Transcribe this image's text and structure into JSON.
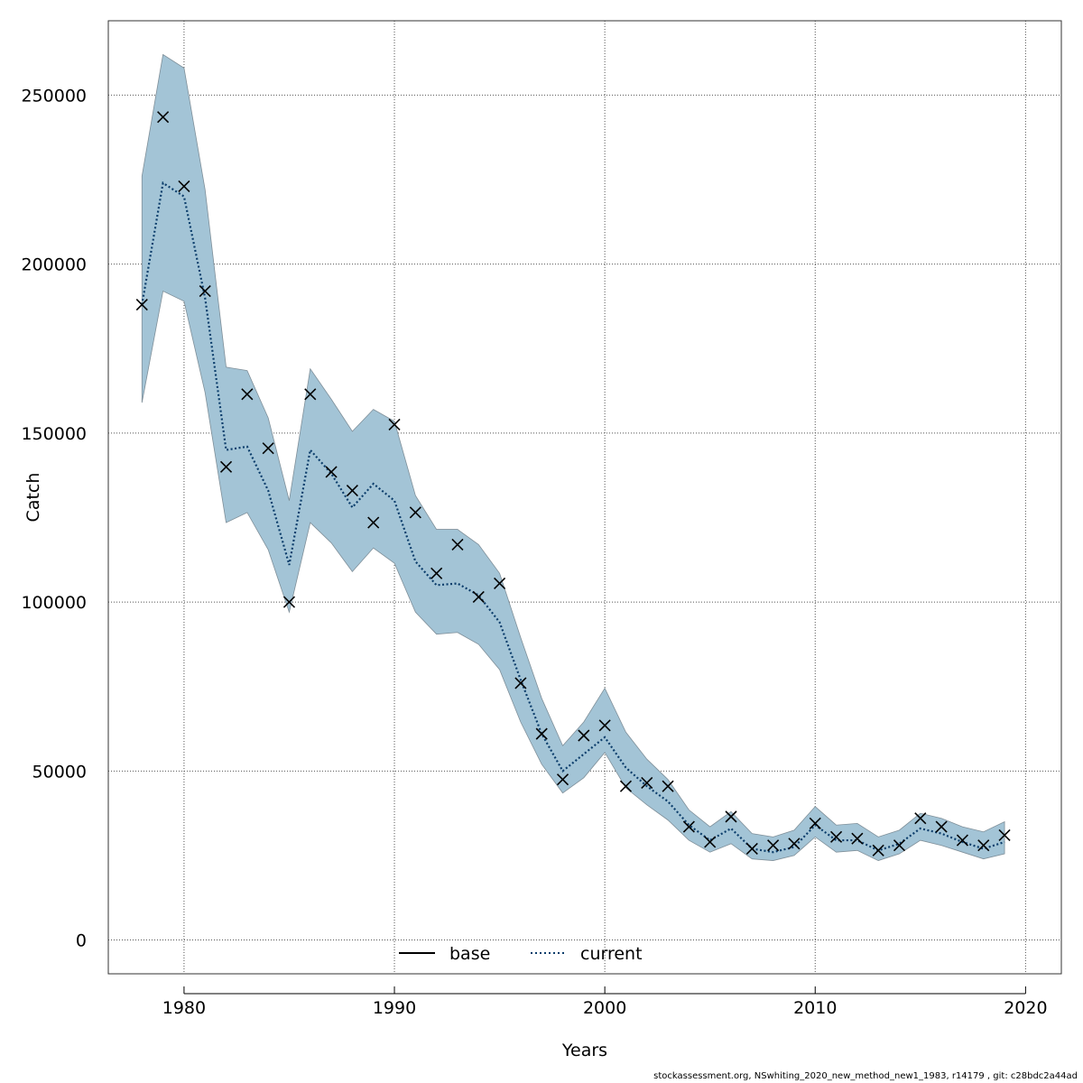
{
  "colors": {
    "band_fill": "#a3c4d6",
    "band_stroke": "#7f8f99",
    "current_line": "#0b3d6b",
    "base_line": "#000000",
    "grid": "#555555",
    "marker": "#000000"
  },
  "footer": "stockassessment.org, NSwhiting_2020_new_method_new1_1983, r14179 , git: c28bdc2a44ad",
  "chart_data": {
    "type": "line",
    "xlabel": "Years",
    "ylabel": "Catch",
    "xlim": [
      1976.4,
      2021.7
    ],
    "ylim": [
      -10000,
      272000
    ],
    "x_ticks": [
      1980,
      1990,
      2000,
      2010,
      2020
    ],
    "x_tick_labels": [
      "1980",
      "1990",
      "2000",
      "2010",
      "2020"
    ],
    "y_ticks": [
      0,
      50000,
      100000,
      150000,
      200000,
      250000
    ],
    "y_tick_labels": [
      "0",
      "50000",
      "100000",
      "150000",
      "200000",
      "250000"
    ],
    "grid": true,
    "legend": {
      "position": "bottom-center",
      "items": [
        {
          "label": "base",
          "style": "solid"
        },
        {
          "label": "current",
          "style": "dotted"
        }
      ]
    },
    "years": [
      1978,
      1979,
      1980,
      1981,
      1982,
      1983,
      1984,
      1985,
      1986,
      1987,
      1988,
      1989,
      1990,
      1991,
      1992,
      1993,
      1994,
      1995,
      1996,
      1997,
      1998,
      1999,
      2000,
      2001,
      2002,
      2003,
      2004,
      2005,
      2006,
      2007,
      2008,
      2009,
      2010,
      2011,
      2012,
      2013,
      2014,
      2015,
      2016,
      2017,
      2018,
      2019
    ],
    "series": [
      {
        "name": "current",
        "values": [
          188000,
          224000,
          220000,
          190000,
          145000,
          146000,
          133000,
          111000,
          145000,
          138000,
          128000,
          135000,
          130000,
          112000,
          105000,
          105500,
          102000,
          94000,
          77000,
          61000,
          50000,
          55000,
          60000,
          51000,
          45500,
          41000,
          34000,
          29500,
          33000,
          27000,
          26000,
          27500,
          34000,
          29500,
          29500,
          26500,
          28500,
          33000,
          31500,
          29000,
          27000,
          29000
        ]
      },
      {
        "name": "lower",
        "values": [
          159000,
          192000,
          189000,
          162000,
          123500,
          126500,
          115500,
          97000,
          123500,
          117500,
          109000,
          116000,
          111500,
          97000,
          90500,
          91000,
          87500,
          80000,
          64500,
          52000,
          43500,
          48000,
          55500,
          45000,
          40000,
          35500,
          29500,
          26000,
          28500,
          24000,
          23500,
          25000,
          30500,
          26000,
          26500,
          23500,
          25500,
          29500,
          28000,
          26000,
          24000,
          25500
        ]
      },
      {
        "name": "upper",
        "values": [
          226000,
          262000,
          258000,
          222000,
          169500,
          168500,
          154500,
          130000,
          169000,
          160000,
          150500,
          157000,
          153500,
          131500,
          121500,
          121500,
          117000,
          108500,
          89500,
          71500,
          57500,
          64500,
          74500,
          61500,
          53500,
          47500,
          38500,
          33500,
          38000,
          31500,
          30500,
          32500,
          39500,
          34000,
          34500,
          30500,
          32500,
          37500,
          36000,
          33500,
          32000,
          35000
        ]
      }
    ],
    "observed": {
      "marker": "x",
      "values": [
        188000,
        243500,
        223000,
        192000,
        140000,
        161500,
        145500,
        100000,
        161500,
        138500,
        133000,
        123500,
        152500,
        126500,
        108500,
        117000,
        101500,
        105500,
        76000,
        61000,
        47500,
        60500,
        63500,
        45500,
        46500,
        45500,
        33500,
        29000,
        36500,
        27000,
        28000,
        28500,
        34500,
        30500,
        30000,
        26500,
        28000,
        36000,
        33500,
        29500,
        28000,
        31000
      ]
    }
  }
}
